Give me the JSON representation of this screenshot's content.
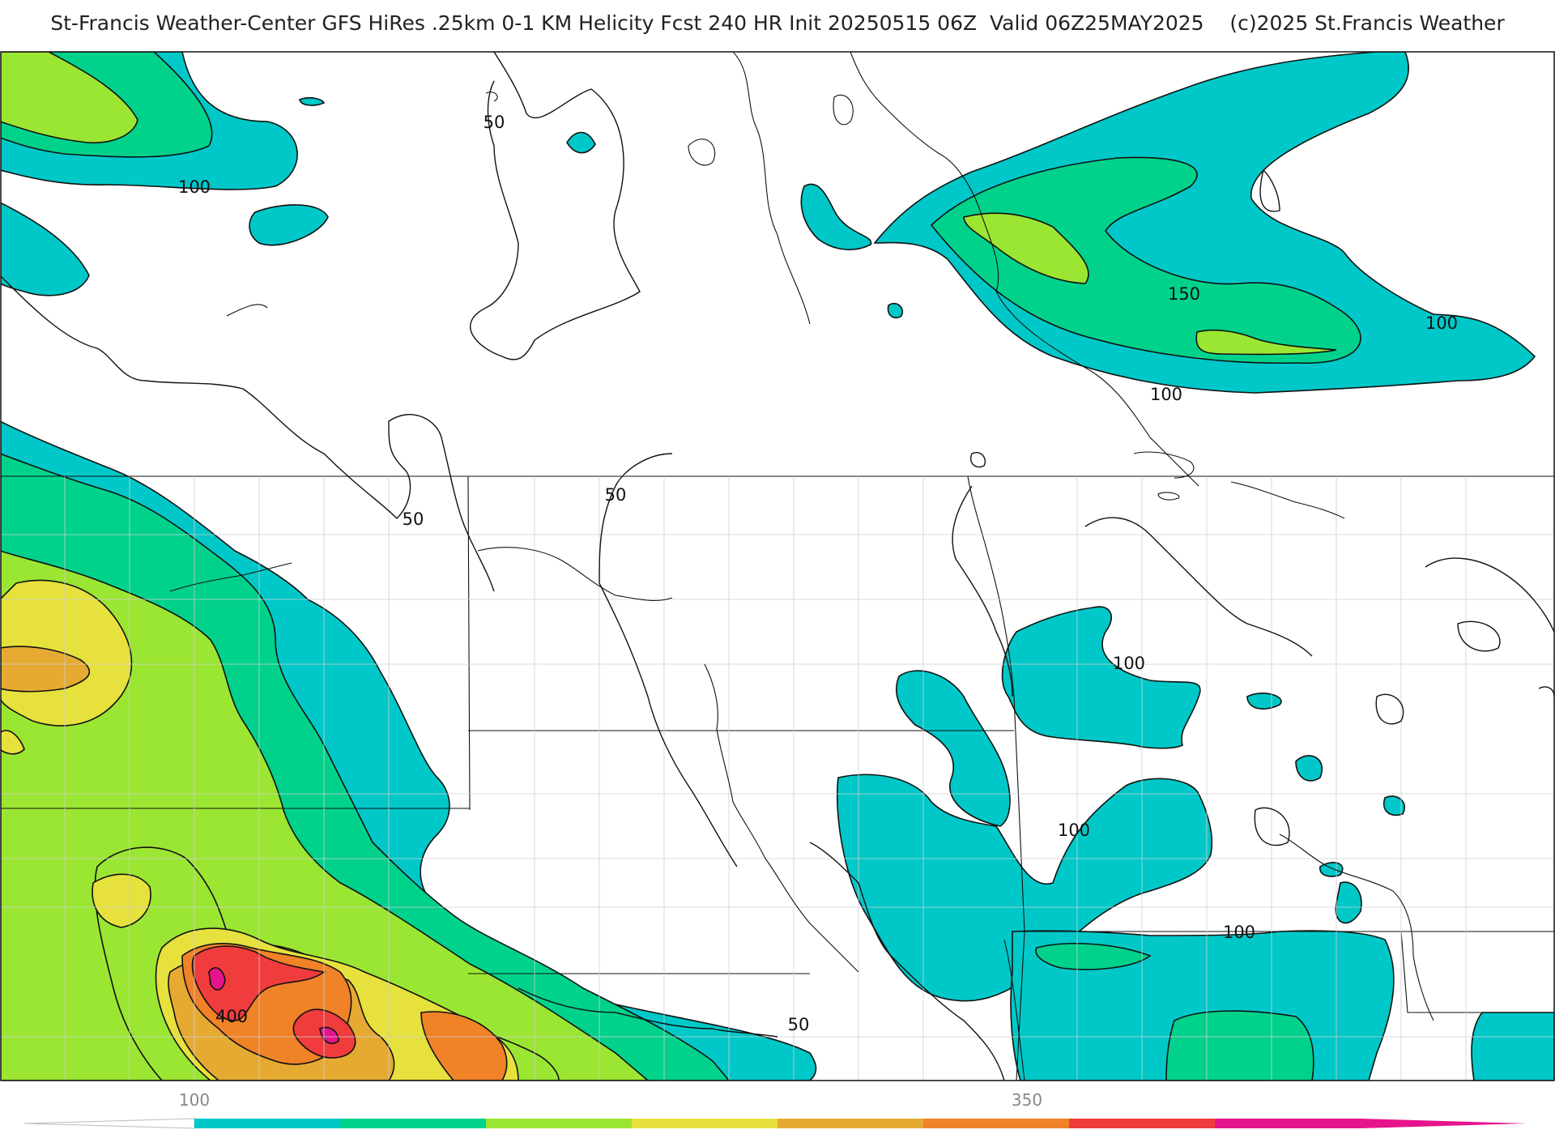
{
  "title": "St-Francis Weather-Center GFS HiRes .25km 0-1 KM Helicity Fcst 240 HR Init 20250515 06Z  Valid 06Z25MAY2025    (c)2025 St.Francis Weather",
  "contour_labels": [
    "50",
    "100",
    "50",
    "50",
    "150",
    "100",
    "100",
    "100",
    "100",
    "100",
    "400",
    "50"
  ],
  "colorbar": {
    "tick_labels": [
      "100",
      "350"
    ],
    "colors": [
      "#00c8c8",
      "#00d28c",
      "#9be632",
      "#e6e13c",
      "#e6aa32",
      "#f08228",
      "#f03c3c",
      "#e6148c"
    ]
  },
  "colors": {
    "c100": "#00c8c8",
    "c150": "#00d28c",
    "c200": "#9be632",
    "c250": "#e6e13c",
    "c300": "#e6aa32",
    "c350": "#f08228",
    "c400": "#f03c3c",
    "c450": "#e6148c"
  }
}
